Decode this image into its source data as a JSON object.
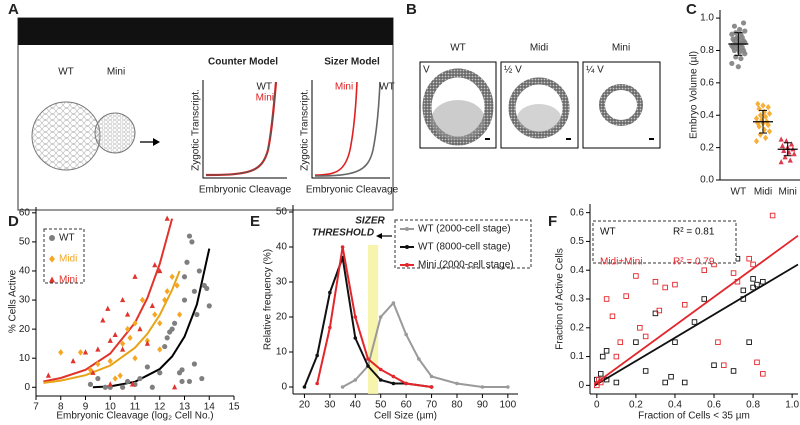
{
  "panels": {
    "A": {
      "label": "A",
      "wt": "WT",
      "mini": "Mini",
      "counter_title": "Counter Model",
      "sizer_title": "Sizer Model",
      "y_label": "Zygotic Transcript.",
      "x_label": "Embryonic Cleavage",
      "counter_wt": "WT",
      "counter_mini": "Mini",
      "sizer_mini": "Mini",
      "sizer_wt": "WT"
    },
    "B": {
      "label": "B",
      "columns": [
        {
          "name": "WT",
          "volume": "V"
        },
        {
          "name": "Midi",
          "volume": "½ V"
        },
        {
          "name": "Mini",
          "volume": "¼ V"
        }
      ]
    }
  },
  "chart_data": [
    {
      "panel_label": "C",
      "type": "strip",
      "y_label": "Embryo Volume (µl)",
      "categories": [
        "WT",
        "Midi",
        "Mini"
      ],
      "groups": [
        {
          "color": "#7f7f7f",
          "marker": "circle",
          "values": [
            0.72,
            0.75,
            0.76,
            0.78,
            0.79,
            0.8,
            0.8,
            0.81,
            0.82,
            0.82,
            0.83,
            0.83,
            0.84,
            0.84,
            0.85,
            0.85,
            0.86,
            0.86,
            0.87,
            0.87,
            0.88,
            0.88,
            0.9,
            0.9,
            0.91,
            0.92,
            0.93,
            0.95,
            0.97,
            0.7
          ],
          "mean": 0.84,
          "sd": 0.07
        },
        {
          "color": "#f5a623",
          "marker": "diamond",
          "values": [
            0.24,
            0.26,
            0.28,
            0.3,
            0.31,
            0.33,
            0.34,
            0.35,
            0.35,
            0.36,
            0.37,
            0.38,
            0.39,
            0.4,
            0.41,
            0.42,
            0.44,
            0.45,
            0.46,
            0.47
          ],
          "mean": 0.36,
          "sd": 0.07
        },
        {
          "color": "#d9263b",
          "marker": "triangle",
          "values": [
            0.11,
            0.12,
            0.14,
            0.16,
            0.17,
            0.18,
            0.19,
            0.2,
            0.21,
            0.22,
            0.24,
            0.25
          ],
          "mean": 0.19,
          "sd": 0.04
        }
      ],
      "ylim": [
        0,
        1.05
      ],
      "yticks": [
        {
          "value": 0,
          "label": "0.0"
        },
        0.2,
        0.4,
        0.6,
        0.8,
        {
          "value": 1,
          "label": "1.0"
        }
      ]
    },
    {
      "panel_label": "D",
      "type": "scatter",
      "x_label": "Embryonic Cleavage (log₂ Cell No.)",
      "y_label": "% Cells Active",
      "xlim": [
        7,
        15
      ],
      "xticks": [
        7,
        8,
        9,
        10,
        11,
        12,
        13,
        14,
        15
      ],
      "ylim": [
        -3,
        62
      ],
      "yticks": [
        0,
        10,
        20,
        30,
        40,
        50,
        60
      ],
      "legend": "upper-left",
      "series": [
        {
          "name": "WT",
          "color": "#7f7f7f",
          "marker": "circle",
          "x": [
            9.2,
            9.5,
            9.8,
            10,
            10.5,
            10.7,
            11,
            11.2,
            11.5,
            11.7,
            12,
            12.2,
            12.3,
            12.4,
            12.5,
            12.6,
            12.8,
            12.9,
            13,
            13,
            13.1,
            13.2,
            13.3,
            13.4,
            13.5,
            13.7,
            13.8,
            13.9,
            14,
            13.6,
            13.2,
            12.9,
            13.4
          ],
          "values": [
            1,
            3,
            0,
            0,
            0,
            2,
            1,
            3,
            7,
            0,
            5,
            14,
            17,
            19,
            20,
            22,
            5,
            6,
            30,
            38,
            43,
            52,
            50,
            33,
            25,
            3,
            35,
            34,
            28,
            40,
            2,
            2,
            8
          ]
        },
        {
          "name": "Midi",
          "color": "#f5a623",
          "marker": "diamond",
          "x": [
            8,
            8.8,
            9.2,
            9.5,
            10,
            10.2,
            10.4,
            10.5,
            10.7,
            11,
            11,
            11.3,
            11.5,
            11.8,
            12,
            12.2,
            12.3,
            12.5,
            12.7,
            12.8,
            12,
            10.8
          ],
          "values": [
            12,
            12,
            6,
            8,
            9,
            3,
            4,
            15,
            20,
            10,
            22,
            30,
            16,
            25,
            22,
            30,
            33,
            38,
            35,
            25,
            13,
            17
          ]
        },
        {
          "name": "Mini",
          "color": "#e0332b",
          "marker": "triangle",
          "x": [
            7.5,
            8.5,
            9,
            9.3,
            9.5,
            9.7,
            9.9,
            10,
            10.2,
            10.5,
            10.5,
            10.7,
            10.9,
            11,
            11.2,
            11.5,
            11.7,
            12,
            12.3,
            12.6,
            10,
            11.8
          ],
          "values": [
            4,
            9,
            12,
            5,
            13,
            23,
            27,
            1,
            18,
            13,
            30,
            25,
            1,
            38,
            20,
            15,
            28,
            40,
            58,
            0,
            16,
            42
          ]
        }
      ],
      "fits": [
        {
          "color": "#e0332b",
          "x": [
            7.3,
            8,
            9,
            10,
            11,
            11.5,
            12,
            12.5
          ],
          "values": [
            2,
            3.2,
            6,
            11.6,
            22.2,
            30.7,
            42.5,
            58
          ]
        },
        {
          "color": "#e8a317",
          "x": [
            7.3,
            8,
            9,
            10,
            11,
            11.5,
            12,
            12.5,
            12.8
          ],
          "values": [
            1.5,
            2.28,
            4.14,
            7.5,
            13.6,
            18.4,
            24.9,
            33.5,
            40
          ]
        },
        {
          "color": "#000000",
          "x": [
            9.3,
            10,
            11,
            12,
            12.5,
            13,
            13.5,
            14
          ],
          "values": [
            0,
            0.3,
            1.9,
            6.3,
            10.6,
            17.4,
            28.5,
            47.7
          ]
        }
      ]
    },
    {
      "panel_label": "E",
      "type": "line",
      "x_label": "Cell Size (µm)",
      "y_label": "Relative frequency (%)",
      "xlim": [
        15.5,
        104
      ],
      "xticks": [
        20,
        30,
        40,
        50,
        60,
        70,
        80,
        90,
        100
      ],
      "ylim": [
        -2,
        52
      ],
      "yticks": [
        0,
        10,
        20,
        30,
        40,
        50
      ],
      "legend": "upper-right",
      "annotation": [
        "SIZER",
        "THRESHOLD"
      ],
      "threshold_band": [
        45,
        49
      ],
      "series": [
        {
          "name": "WT (2000-cell stage)",
          "color": "#9a9a9a",
          "x": [
            35,
            40,
            45,
            50,
            55,
            60,
            65,
            70,
            80,
            90,
            100
          ],
          "values": [
            0,
            2,
            6,
            20,
            24,
            15,
            8,
            3,
            1,
            0,
            0
          ]
        },
        {
          "name": "WT (8000-cell stage)",
          "color": "#111111",
          "x": [
            20,
            25,
            30,
            35,
            40,
            45,
            50,
            55,
            60,
            70
          ],
          "values": [
            0,
            9,
            27,
            37,
            14,
            6,
            2,
            1,
            1,
            0
          ]
        },
        {
          "name": "Mini (2000-cell stage)",
          "color": "#e3262b",
          "x": [
            25,
            30,
            35,
            40,
            45,
            50,
            55,
            60,
            70
          ],
          "values": [
            1,
            17,
            40,
            20,
            8,
            5,
            3,
            1,
            0
          ]
        }
      ]
    },
    {
      "panel_label": "F",
      "type": "scatter",
      "x_label": "Fraction of Cells < 35 µm",
      "y_label": "Fraction of Active Cells",
      "xlim": [
        -0.035,
        1.03
      ],
      "xticks": [
        0,
        0.2,
        0.4,
        0.6,
        0.8,
        {
          "value": 1,
          "label": "1.0"
        }
      ],
      "ylim": [
        -0.03,
        0.63
      ],
      "yticks": [
        0,
        0.1,
        0.2,
        0.3,
        0.4,
        0.5,
        0.6
      ],
      "legend": "upper-left",
      "series": [
        {
          "name": "WT",
          "stat_label": "R² = 0.81",
          "color": "#111111",
          "marker": "square",
          "x": [
            0,
            0.02,
            0.03,
            0.05,
            0.05,
            0.1,
            0.2,
            0.25,
            0.3,
            0.35,
            0.38,
            0.4,
            0.45,
            0.5,
            0.55,
            0.6,
            0.65,
            0.7,
            0.7,
            0.72,
            0.75,
            0.78,
            0.8,
            0.82,
            0.85,
            0.8,
            0.75
          ],
          "values": [
            0.02,
            0.04,
            0.1,
            0.12,
            0.02,
            0.01,
            0.15,
            0.05,
            0.25,
            0.01,
            0.03,
            0.15,
            0.01,
            0.22,
            0.3,
            0.07,
            0.52,
            0.05,
            0.5,
            0.44,
            0.3,
            0.15,
            0.37,
            0.35,
            0.36,
            0.34,
            0.33
          ],
          "fit": {
            "x": [
              -0.01,
              1.03
            ],
            "values": [
              0,
              0.42
            ]
          }
        },
        {
          "name": "Midi+Mini",
          "stat_label": "R² = 0.79",
          "color": "#e3262b",
          "marker": "square",
          "x": [
            0,
            0.01,
            0.02,
            0.05,
            0.08,
            0.1,
            0.12,
            0.15,
            0.2,
            0.22,
            0.25,
            0.28,
            0.3,
            0.32,
            0.35,
            0.4,
            0.45,
            0.5,
            0.55,
            0.6,
            0.62,
            0.65,
            0.7,
            0.72,
            0.78,
            0.8,
            0.82,
            0.85,
            0.9
          ],
          "values": [
            0,
            0.02,
            0.01,
            0.3,
            0.24,
            0.1,
            0.15,
            0.31,
            0.38,
            0.2,
            0.17,
            0.45,
            0.36,
            0.26,
            0.34,
            0.35,
            0.28,
            0.45,
            0.4,
            0.42,
            0.15,
            0.07,
            0.39,
            0.36,
            0.44,
            0.42,
            0.08,
            0.04,
            0.59
          ],
          "fit": {
            "x": [
              -0.01,
              1.03
            ],
            "values": [
              0.005,
              0.52
            ]
          }
        }
      ]
    }
  ]
}
